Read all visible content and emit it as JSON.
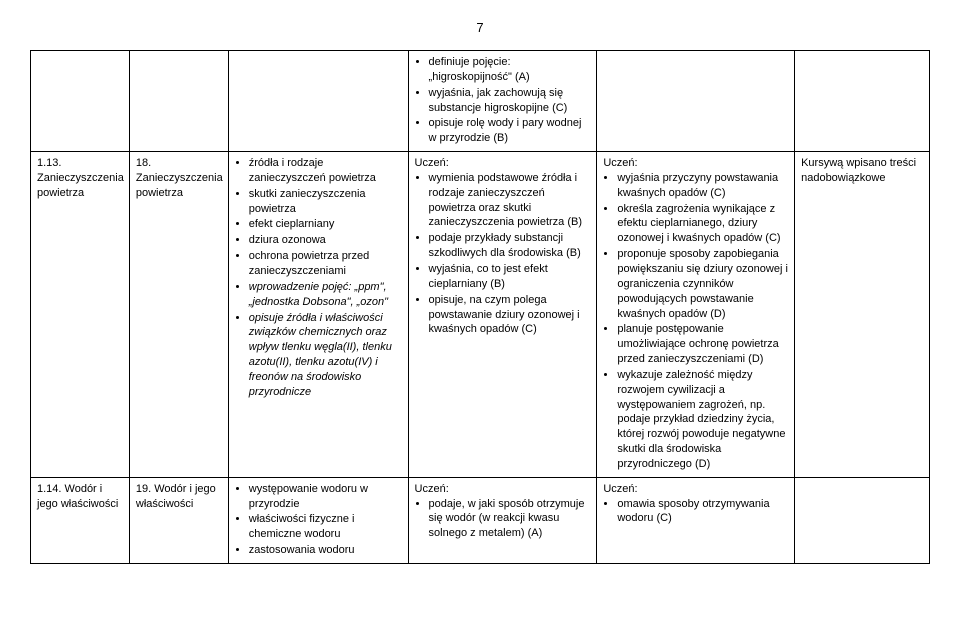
{
  "page_number": "7",
  "row0": {
    "col4_items": [
      "definiuje pojęcie: „higroskopijność\" (A)",
      "wyjaśnia, jak zachowują się substancje higroskopijne (C)",
      "opisuje rolę wody i pary wodnej w przyrodzie (B)"
    ]
  },
  "row1": {
    "col1": "1.13. Zanieczyszczenia powietrza",
    "col2": "18. Zanieczyszczenia powietrza",
    "col3_items": [
      "źródła i rodzaje zanieczyszczeń powietrza",
      "skutki zanieczyszczenia powietrza",
      "efekt cieplarniany",
      "dziura ozonowa",
      "ochrona powietrza przed zanieczyszczeniami"
    ],
    "col3_italic_prefix": "wprowadzenie pojęć: „ppm\", „jednostka Dobsona\", „ozon\"",
    "col3_italic2_prefix": "opisuje źródła i właściwości związków chemicznych oraz wpływ tlenku węgla(II), tlenku azotu(II), tlenku azotu(IV) i  freonów na środowisko przyrodnicze",
    "col4_header": "Uczeń:",
    "col4_items": [
      "wymienia podstawowe źródła i rodzaje zanieczyszczeń powietrza oraz skutki zanieczyszczenia powietrza (B)",
      "podaje przykłady substancji szkodliwych dla środowiska (B)",
      "wyjaśnia, co to jest efekt cieplarniany (B)",
      "opisuje, na czym polega powstawanie dziury ozonowej i kwaśnych opadów (C)"
    ],
    "col5_header": "Uczeń:",
    "col5_items": [
      "wyjaśnia przyczyny powstawania kwaśnych opadów (C)",
      "określa zagrożenia wynikające z efektu cieplarnianego, dziury ozonowej i kwaśnych opadów (C)",
      "proponuje sposoby zapobiegania powiększaniu się dziury ozonowej i ograniczenia czynników powodujących powstawanie kwaśnych opadów (D)",
      "planuje postępowanie umożliwiające ochronę powietrza przed zanieczyszczeniami (D)",
      "wykazuje zależność między rozwojem cywilizacji a występowaniem zagrożeń, np. podaje przykład dziedziny życia, której rozwój powoduje negatywne skutki dla środowiska przyrodniczego (D)"
    ],
    "col6": "Kursywą wpisano treści nadobowiązkowe"
  },
  "row2": {
    "col1": "1.14. Wodór i jego właściwości",
    "col2": "19. Wodór i jego właściwości",
    "col3_items": [
      "występowanie wodoru w przyrodzie",
      "właściwości fizyczne i chemiczne wodoru",
      "zastosowania wodoru"
    ],
    "col4_header": "Uczeń:",
    "col4_items": [
      "podaje, w jaki sposób otrzymuje się wodór (w reakcji kwasu solnego z metalem) (A)"
    ],
    "col5_header": "Uczeń:",
    "col5_items": [
      "omawia sposoby otrzymywania wodoru (C)"
    ]
  }
}
